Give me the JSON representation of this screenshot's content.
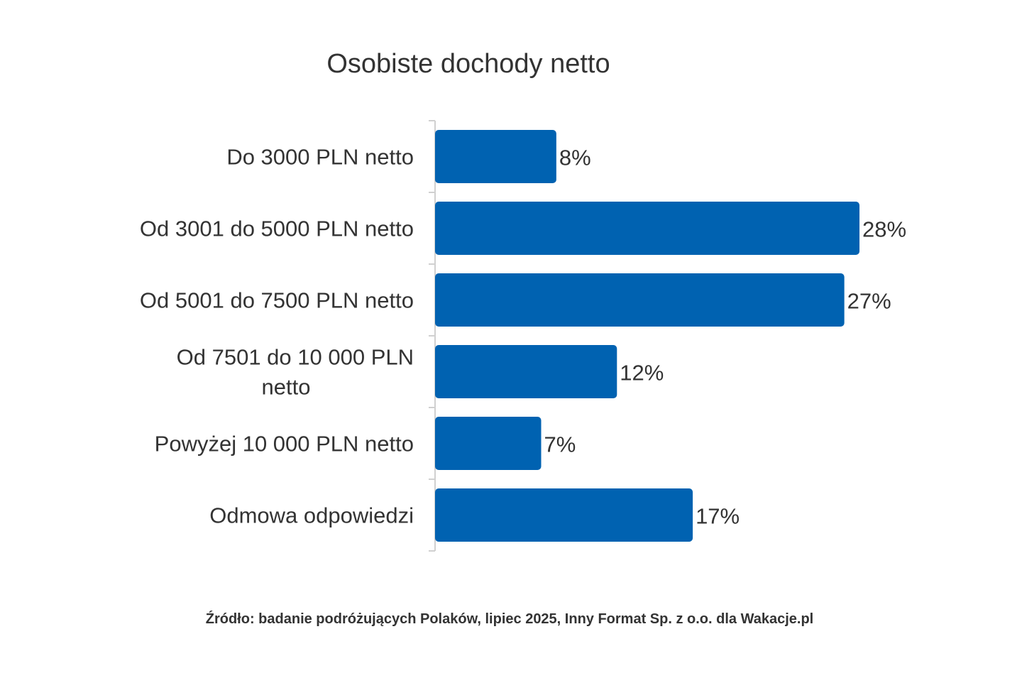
{
  "chart_data": {
    "type": "bar",
    "orientation": "horizontal",
    "title": "Osobiste dochody netto",
    "categories": [
      [
        "Do 3000 PLN netto"
      ],
      [
        "Od 3001 do 5000 PLN netto"
      ],
      [
        "Od 5001 do 7500 PLN netto"
      ],
      [
        "Od 7501 do 10 000 PLN",
        "netto"
      ],
      [
        "Powyżej 10 000 PLN netto"
      ],
      [
        "Odmowa odpowiedzi"
      ]
    ],
    "values": [
      8,
      28,
      27,
      12,
      7,
      17
    ],
    "data_labels": [
      "8%",
      "28%",
      "27%",
      "12%",
      "7%",
      "17%"
    ],
    "unit": "%",
    "xlim": [
      0,
      28
    ],
    "grid": false,
    "legend": "none",
    "bar_color": "#0062B1",
    "source": "Źródło: badanie podróżujących Polaków, lipiec 2025, Inny Format Sp. z o.o. dla Wakacje.pl"
  }
}
